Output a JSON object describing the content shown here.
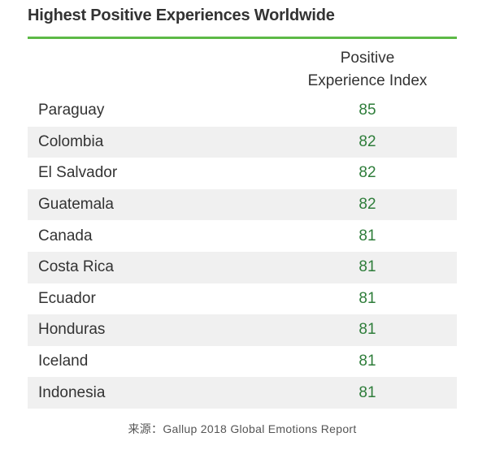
{
  "title": "Highest Positive Experiences Worldwide",
  "header": {
    "line1": "Positive",
    "line2": "Experience Index"
  },
  "colors": {
    "accent": "#5cb946",
    "value_text": "#2e7d3a",
    "row_shade": "#f0f0f0",
    "row_plain": "#ffffff"
  },
  "source": "来源：Gallup 2018 Global Emotions Report",
  "chart_data": {
    "type": "table",
    "title": "Highest Positive Experiences Worldwide",
    "columns": [
      "",
      "Positive Experience Index"
    ],
    "categories": [
      "Paraguay",
      "Colombia",
      "El Salvador",
      "Guatemala",
      "Canada",
      "Costa Rica",
      "Ecuador",
      "Honduras",
      "Iceland",
      "Indonesia"
    ],
    "values": [
      85,
      82,
      82,
      82,
      81,
      81,
      81,
      81,
      81,
      81
    ],
    "striped_rows": true
  }
}
